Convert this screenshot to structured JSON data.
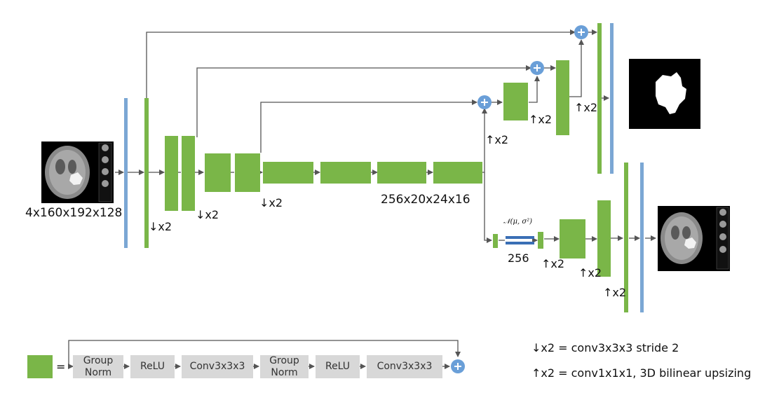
{
  "colors": {
    "green": "#7ab648",
    "blue": "#7ba7d4",
    "plus": "#6a9fd8",
    "arrow": "#555555",
    "box": "#d8d8d8"
  },
  "labels": {
    "input_size": "4x160x192x128",
    "down1": "↓x2",
    "down2": "↓x2",
    "down3": "↓x2",
    "bottleneck_size": "256x20x24x16",
    "up_dec1": "↑x2",
    "up_dec2": "↑x2",
    "up_dec3": "↑x2",
    "vae_latent": "256",
    "vae_formula": "𝒩(μ, σ²)",
    "up_vae1": "↑x2",
    "up_vae2": "↑x2",
    "up_vae3": "↑x2"
  },
  "legend": {
    "equals": "=",
    "boxes": [
      "Group\nNorm",
      "ReLU",
      "Conv3x3x3",
      "Group\nNorm",
      "ReLU",
      "Conv3x3x3"
    ],
    "down_def": "↓x2 = conv3x3x3 stride 2",
    "up_def": "↑x2 = conv1x1x1, 3D bilinear upsizing"
  },
  "images": {
    "input": "brain-mri-input",
    "segmentation": "tumor-segmentation-mask",
    "reconstruction": "brain-mri-reconstruction"
  }
}
